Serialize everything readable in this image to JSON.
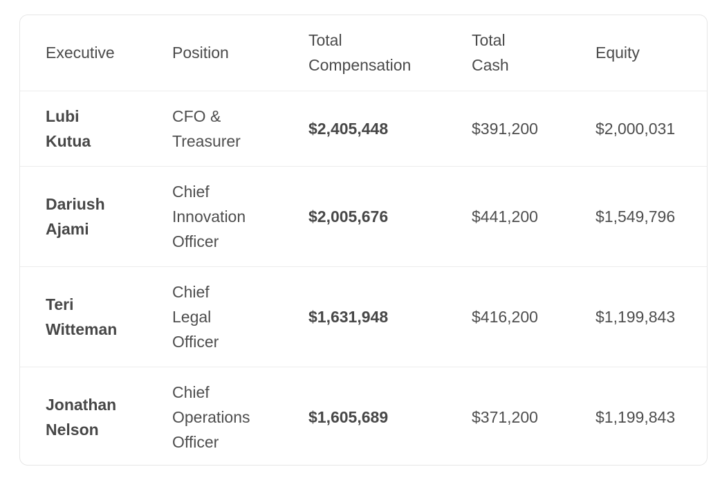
{
  "table": {
    "headers": [
      "Executive",
      "Position",
      "Total Compensation",
      "Total Cash",
      "Equity"
    ],
    "rows": [
      {
        "executive": "Lubi Kutua",
        "position": "CFO & Treasurer",
        "total_compensation": "$2,405,448",
        "total_cash": "$391,200",
        "equity": "$2,000,031"
      },
      {
        "executive": "Dariush Ajami",
        "position": "Chief Innovation Officer",
        "total_compensation": "$2,005,676",
        "total_cash": "$441,200",
        "equity": "$1,549,796"
      },
      {
        "executive": "Teri Witteman",
        "position": "Chief Legal Officer",
        "total_compensation": "$1,631,948",
        "total_cash": "$416,200",
        "equity": "$1,199,843"
      },
      {
        "executive": "Jonathan Nelson",
        "position": "Chief Operations Officer",
        "total_compensation": "$1,605,689",
        "total_cash": "$371,200",
        "equity": "$1,199,843"
      }
    ]
  }
}
